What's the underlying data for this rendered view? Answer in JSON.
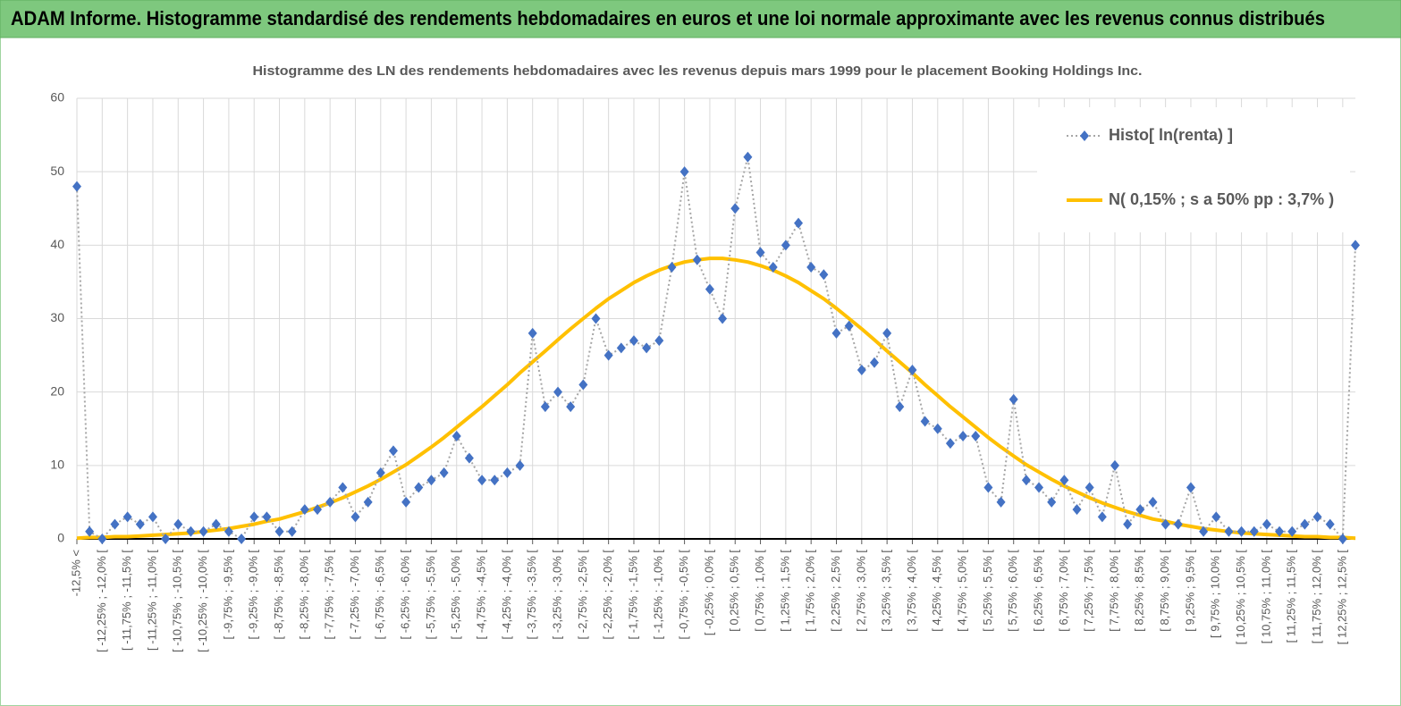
{
  "chart_data": {
    "type": "line",
    "title": "ADAM Informe. Histogramme standardisé des rendements hebdomadaires en euros et une loi normale approximante avec les revenus connus distribués",
    "subtitle": "Histogramme  des LN des rendements  hebdomadaires avec les revenus depuis mars 1999 pour le placement Booking Holdings Inc.",
    "categories": [
      "-12,5% <",
      null,
      "[ -12,25% ; -12,0% [",
      null,
      "[ -11,75% ; -11,5% [",
      null,
      "[ -11,25% ; -11,0% [",
      null,
      "[ -10,75% ; -10,5% [",
      null,
      "[ -10,25% ; -10,0% [",
      null,
      "[ -9,75% ; -9,5% [",
      null,
      "[ -9,25% ; -9,0% [",
      null,
      "[ -8,75% ; -8,5% [",
      null,
      "[ -8,25% ; -8,0% [",
      null,
      "[ -7,75% ; -7,5% [",
      null,
      "[ -7,25% ; -7,0% [",
      null,
      "[ -6,75% ; -6,5% [",
      null,
      "[ -6,25% ; -6,0% [",
      null,
      "[ -5,75% ; -5,5% [",
      null,
      "[ -5,25% ; -5,0% [",
      null,
      "[ -4,75% ; -4,5% [",
      null,
      "[ -4,25% ; -4,0% [",
      null,
      "[ -3,75% ; -3,5% [",
      null,
      "[ -3,25% ; -3,0% [",
      null,
      "[ -2,75% ; -2,5% [",
      null,
      "[ -2,25% ; -2,0% [",
      null,
      "[ -1,75% ; -1,5% [",
      null,
      "[ -1,25% ; -1,0% [",
      null,
      "[ -0,75% ; -0,5% [",
      null,
      "[ -0,25% ; 0,0% [",
      null,
      "[ 0,25% ; 0,5% [",
      null,
      "[ 0,75% ; 1,0% [",
      null,
      "[ 1,25% ; 1,5% [",
      null,
      "[ 1,75% ; 2,0% [",
      null,
      "[ 2,25% ; 2,5% [",
      null,
      "[ 2,75% ; 3,0% [",
      null,
      "[ 3,25% ; 3,5% [",
      null,
      "[ 3,75% ; 4,0% [",
      null,
      "[ 4,25% ; 4,5% [",
      null,
      "[ 4,75% ; 5,0% [",
      null,
      "[ 5,25% ; 5,5% [",
      null,
      "[ 5,75% ; 6,0% [",
      null,
      "[ 6,25% ; 6,5% [",
      null,
      "[ 6,75% ; 7,0% [",
      null,
      "[ 7,25% ; 7,5% [",
      null,
      "[ 7,75% ; 8,0% [",
      null,
      "[ 8,25% ; 8,5% [",
      null,
      "[ 8,75% ; 9,0% [",
      null,
      "[ 9,25% ; 9,5% [",
      null,
      "[ 9,75% ; 10,0% [",
      null,
      "[ 10,25% ; 10,5% [",
      null,
      "[ 10,75% ; 11,0% [",
      null,
      "[ 11,25% ; 11,5% [",
      null,
      "[ 11,75% ; 12,0% [",
      null,
      "[ 12,25% ; 12,5% [",
      null
    ],
    "series": [
      {
        "name": "Histo[ ln(renta) ]",
        "color": "#4472c4",
        "line_color": "#a6a6a6",
        "line": "dotted",
        "marker": "diamond",
        "values": [
          48,
          1,
          0,
          2,
          3,
          2,
          3,
          0,
          2,
          1,
          1,
          2,
          1,
          0,
          3,
          3,
          1,
          1,
          4,
          4,
          5,
          7,
          3,
          5,
          9,
          12,
          5,
          7,
          8,
          9,
          14,
          11,
          8,
          8,
          9,
          10,
          28,
          18,
          20,
          18,
          21,
          30,
          25,
          26,
          27,
          26,
          27,
          37,
          50,
          38,
          34,
          30,
          45,
          52,
          39,
          37,
          40,
          43,
          37,
          36,
          28,
          29,
          23,
          24,
          28,
          18,
          23,
          16,
          15,
          13,
          14,
          14,
          7,
          5,
          19,
          8,
          7,
          5,
          8,
          4,
          7,
          3,
          10,
          2,
          4,
          5,
          2,
          2,
          7,
          1,
          3,
          1,
          1,
          1,
          2,
          1,
          1,
          2,
          3,
          2,
          0,
          40
        ]
      },
      {
        "name": "N( 0,15% ; s a 50% pp : 3,7% )",
        "color": "#ffc000",
        "line": "solid",
        "marker": "none",
        "values": [
          0.1,
          0.2,
          0.2,
          0.3,
          0.3,
          0.4,
          0.5,
          0.6,
          0.7,
          0.8,
          1.0,
          1.2,
          1.4,
          1.7,
          2.0,
          2.4,
          2.7,
          3.2,
          3.7,
          4.3,
          4.9,
          5.6,
          6.4,
          7.2,
          8.1,
          9.1,
          10.1,
          11.3,
          12.5,
          13.8,
          15.2,
          16.6,
          18.0,
          19.5,
          21.0,
          22.6,
          24.1,
          25.6,
          27.1,
          28.6,
          30.0,
          31.4,
          32.7,
          33.8,
          34.9,
          35.8,
          36.6,
          37.2,
          37.7,
          38.0,
          38.2,
          38.2,
          38.0,
          37.7,
          37.2,
          36.6,
          35.8,
          34.9,
          33.8,
          32.7,
          31.4,
          30.0,
          28.6,
          27.1,
          25.6,
          24.1,
          22.6,
          21.0,
          19.5,
          18.0,
          16.6,
          15.2,
          13.8,
          12.5,
          11.3,
          10.1,
          9.1,
          8.1,
          7.2,
          6.4,
          5.6,
          4.9,
          4.3,
          3.7,
          3.2,
          2.7,
          2.4,
          2.0,
          1.7,
          1.4,
          1.2,
          1.0,
          0.8,
          0.7,
          0.6,
          0.5,
          0.4,
          0.3,
          0.3,
          0.2,
          0.2,
          0.1
        ]
      }
    ],
    "ylim": [
      0,
      60
    ],
    "yticks": [
      0,
      10,
      20,
      30,
      40,
      50,
      60
    ],
    "grid": true,
    "legend": "upper right"
  }
}
